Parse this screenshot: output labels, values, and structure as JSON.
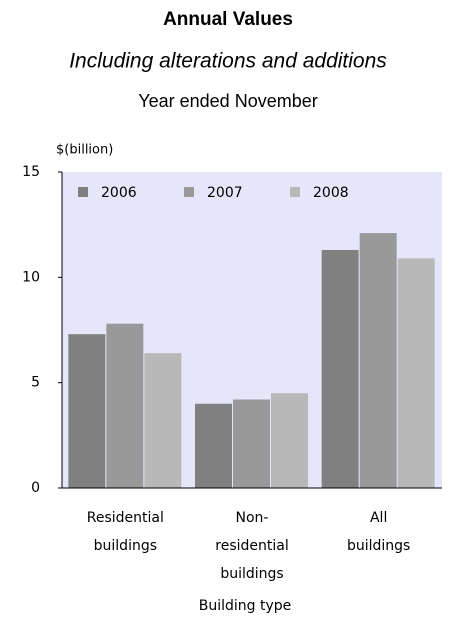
{
  "chart_data": {
    "type": "bar",
    "title": "Annual Values",
    "subtitle": "Including alterations and additions",
    "period": "Year ended November",
    "y_label": "$(billion)",
    "x_label": "Building type",
    "categories": [
      [
        "Residential",
        "buildings"
      ],
      [
        "Non-",
        "residential",
        "buildings"
      ],
      [
        "All",
        "buildings"
      ]
    ],
    "series": [
      {
        "name": "2006",
        "color": "#808080",
        "values": [
          7.3,
          4.0,
          11.3
        ]
      },
      {
        "name": "2007",
        "color": "#999999",
        "values": [
          7.8,
          4.2,
          12.1
        ]
      },
      {
        "name": "2008",
        "color": "#b8b8b8",
        "values": [
          6.4,
          4.5,
          10.9
        ]
      }
    ],
    "ylim": [
      0,
      15
    ],
    "yticks": [
      0,
      5,
      10,
      15
    ],
    "plot_background": "#e6e6fa",
    "legend": "top"
  }
}
